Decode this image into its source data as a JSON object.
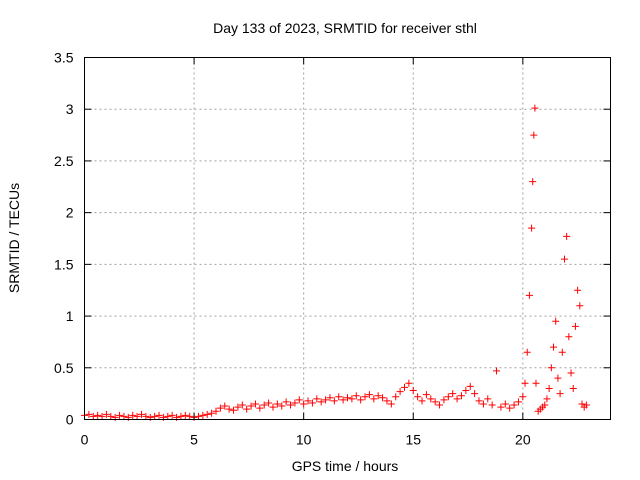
{
  "chart_data": {
    "type": "scatter",
    "title": "Day 133 of 2023, SRMTID for receiver sthl",
    "xlabel": "GPS time / hours",
    "ylabel": "SRMTID / TECUs",
    "xlim": [
      0,
      24
    ],
    "ylim": [
      0,
      3.5
    ],
    "xticks": [
      0,
      5,
      10,
      15,
      20
    ],
    "yticks": [
      0,
      0.5,
      1,
      1.5,
      2,
      2.5,
      3,
      3.5
    ],
    "xtick_labels": [
      "0",
      "5",
      "10",
      "15",
      "20"
    ],
    "ytick_labels": [
      "0",
      "0.5",
      "1",
      "1.5",
      "2",
      "2.5",
      "3",
      "3.5"
    ],
    "grid": true,
    "marker": "+",
    "color": "#ff0000",
    "series": [
      {
        "name": "SRMTID",
        "points": [
          [
            0.0,
            0.04
          ],
          [
            0.2,
            0.05
          ],
          [
            0.4,
            0.03
          ],
          [
            0.6,
            0.04
          ],
          [
            0.8,
            0.03
          ],
          [
            1.0,
            0.05
          ],
          [
            1.2,
            0.03
          ],
          [
            1.4,
            0.02
          ],
          [
            1.6,
            0.04
          ],
          [
            1.8,
            0.03
          ],
          [
            2.0,
            0.02
          ],
          [
            2.2,
            0.04
          ],
          [
            2.4,
            0.03
          ],
          [
            2.6,
            0.05
          ],
          [
            2.8,
            0.03
          ],
          [
            3.0,
            0.02
          ],
          [
            3.2,
            0.03
          ],
          [
            3.4,
            0.04
          ],
          [
            3.6,
            0.02
          ],
          [
            3.8,
            0.03
          ],
          [
            4.0,
            0.04
          ],
          [
            4.2,
            0.02
          ],
          [
            4.4,
            0.03
          ],
          [
            4.6,
            0.04
          ],
          [
            4.8,
            0.03
          ],
          [
            5.0,
            0.02
          ],
          [
            5.2,
            0.03
          ],
          [
            5.4,
            0.04
          ],
          [
            5.6,
            0.05
          ],
          [
            5.8,
            0.06
          ],
          [
            6.0,
            0.08
          ],
          [
            6.2,
            0.11
          ],
          [
            6.4,
            0.13
          ],
          [
            6.6,
            0.1
          ],
          [
            6.8,
            0.09
          ],
          [
            7.0,
            0.12
          ],
          [
            7.2,
            0.14
          ],
          [
            7.4,
            0.1
          ],
          [
            7.6,
            0.13
          ],
          [
            7.8,
            0.15
          ],
          [
            8.0,
            0.11
          ],
          [
            8.2,
            0.14
          ],
          [
            8.4,
            0.16
          ],
          [
            8.6,
            0.12
          ],
          [
            8.8,
            0.15
          ],
          [
            9.0,
            0.13
          ],
          [
            9.2,
            0.17
          ],
          [
            9.4,
            0.14
          ],
          [
            9.6,
            0.16
          ],
          [
            9.8,
            0.19
          ],
          [
            10.0,
            0.15
          ],
          [
            10.2,
            0.18
          ],
          [
            10.4,
            0.16
          ],
          [
            10.6,
            0.2
          ],
          [
            10.8,
            0.17
          ],
          [
            11.0,
            0.19
          ],
          [
            11.2,
            0.21
          ],
          [
            11.4,
            0.18
          ],
          [
            11.6,
            0.22
          ],
          [
            11.8,
            0.19
          ],
          [
            12.0,
            0.21
          ],
          [
            12.2,
            0.2
          ],
          [
            12.4,
            0.23
          ],
          [
            12.6,
            0.19
          ],
          [
            12.8,
            0.22
          ],
          [
            13.0,
            0.24
          ],
          [
            13.2,
            0.2
          ],
          [
            13.4,
            0.23
          ],
          [
            13.6,
            0.21
          ],
          [
            13.8,
            0.18
          ],
          [
            14.0,
            0.15
          ],
          [
            14.2,
            0.22
          ],
          [
            14.4,
            0.27
          ],
          [
            14.6,
            0.31
          ],
          [
            14.8,
            0.35
          ],
          [
            15.0,
            0.28
          ],
          [
            15.2,
            0.22
          ],
          [
            15.4,
            0.18
          ],
          [
            15.6,
            0.24
          ],
          [
            15.8,
            0.2
          ],
          [
            16.0,
            0.17
          ],
          [
            16.2,
            0.14
          ],
          [
            16.4,
            0.19
          ],
          [
            16.6,
            0.22
          ],
          [
            16.8,
            0.25
          ],
          [
            17.0,
            0.2
          ],
          [
            17.2,
            0.23
          ],
          [
            17.4,
            0.28
          ],
          [
            17.6,
            0.32
          ],
          [
            17.8,
            0.25
          ],
          [
            18.0,
            0.18
          ],
          [
            18.2,
            0.15
          ],
          [
            18.4,
            0.2
          ],
          [
            18.6,
            0.14
          ],
          [
            18.8,
            0.47
          ],
          [
            19.0,
            0.12
          ],
          [
            19.2,
            0.15
          ],
          [
            19.4,
            0.11
          ],
          [
            19.6,
            0.14
          ],
          [
            19.8,
            0.17
          ],
          [
            20.0,
            0.22
          ],
          [
            20.1,
            0.35
          ],
          [
            20.2,
            0.65
          ],
          [
            20.3,
            1.2
          ],
          [
            20.4,
            1.85
          ],
          [
            20.45,
            2.3
          ],
          [
            20.5,
            2.75
          ],
          [
            20.55,
            3.01
          ],
          [
            20.6,
            0.35
          ],
          [
            20.7,
            0.08
          ],
          [
            20.8,
            0.1
          ],
          [
            20.9,
            0.12
          ],
          [
            21.0,
            0.14
          ],
          [
            21.1,
            0.2
          ],
          [
            21.2,
            0.3
          ],
          [
            21.3,
            0.5
          ],
          [
            21.4,
            0.7
          ],
          [
            21.5,
            0.95
          ],
          [
            21.6,
            0.4
          ],
          [
            21.7,
            0.25
          ],
          [
            21.8,
            0.65
          ],
          [
            21.9,
            1.55
          ],
          [
            22.0,
            1.77
          ],
          [
            22.1,
            0.8
          ],
          [
            22.2,
            0.45
          ],
          [
            22.3,
            0.3
          ],
          [
            22.4,
            0.9
          ],
          [
            22.5,
            1.25
          ],
          [
            22.6,
            1.1
          ],
          [
            22.7,
            0.15
          ],
          [
            22.8,
            0.12
          ],
          [
            22.9,
            0.14
          ]
        ]
      }
    ]
  }
}
